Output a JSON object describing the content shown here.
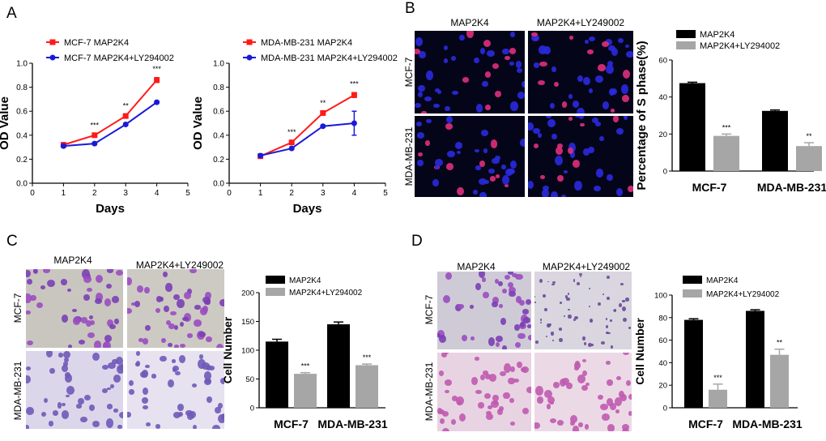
{
  "panels": {
    "a": "A",
    "b": "B",
    "c": "C",
    "d": "D"
  },
  "colors": {
    "red": "#ff1a1a",
    "blue": "#1a1ad6",
    "black": "#000000",
    "gray": "#a6a6a6"
  },
  "images": {
    "b": {
      "cols": [
        "MAP2K4",
        "MAP2K4+LY249002"
      ],
      "rows": [
        "MCF-7",
        "MDA-MB-231"
      ]
    },
    "c": {
      "cols": [
        "MAP2K4",
        "MAP2K4+LY249002"
      ],
      "rows": [
        "MCF-7",
        "MDA-MB-231"
      ]
    },
    "d": {
      "cols": [
        "MAP2K4",
        "MAP2K4+LY249002"
      ],
      "rows": [
        "MCF-7",
        "MDA-MB-231"
      ]
    }
  },
  "chart_data": [
    {
      "id": "a1",
      "type": "line",
      "title": "",
      "xlabel": "Days",
      "ylabel": "OD Value",
      "xlim": [
        0,
        5
      ],
      "ylim": [
        0,
        1.0
      ],
      "xticks": [
        "0",
        "1",
        "2",
        "3",
        "4",
        "5"
      ],
      "yticks": [
        "0.0",
        "0.2",
        "0.4",
        "0.6",
        "0.8",
        "1.0"
      ],
      "x": [
        1,
        2,
        3,
        4
      ],
      "series": [
        {
          "name": "MCF-7 MAP2K4",
          "marker": "square",
          "values": [
            0.32,
            0.4,
            0.56,
            0.86
          ],
          "errors": [
            0.01,
            0.01,
            0.01,
            0.02
          ]
        },
        {
          "name": "MCF-7 MAP2K4+LY294002",
          "marker": "circle",
          "values": [
            0.31,
            0.33,
            0.49,
            0.675
          ],
          "errors": [
            0.01,
            0.01,
            0.01,
            0.01
          ]
        }
      ],
      "significance": [
        "",
        "***",
        "**",
        "***"
      ],
      "legend": "top-left"
    },
    {
      "id": "a2",
      "type": "line",
      "title": "",
      "xlabel": "Days",
      "ylabel": "OD Value",
      "xlim": [
        0,
        5
      ],
      "ylim": [
        0,
        1.0
      ],
      "xticks": [
        "0",
        "1",
        "2",
        "3",
        "4",
        "5"
      ],
      "yticks": [
        "0.0",
        "0.2",
        "0.4",
        "0.6",
        "0.8",
        "1.0"
      ],
      "x": [
        1,
        2,
        3,
        4
      ],
      "series": [
        {
          "name": "MDA-MB-231  MAP2K4",
          "marker": "square",
          "values": [
            0.225,
            0.34,
            0.585,
            0.735
          ],
          "errors": [
            0.01,
            0.01,
            0.01,
            0.02
          ]
        },
        {
          "name": "MDA-MB-231  MAP2K4+LY294002",
          "marker": "circle",
          "values": [
            0.23,
            0.29,
            0.475,
            0.5
          ],
          "errors": [
            0.01,
            0.01,
            0.01,
            0.1
          ]
        }
      ],
      "significance": [
        "",
        "***",
        "**",
        "***"
      ],
      "legend": "top-left"
    },
    {
      "id": "b",
      "type": "bar",
      "ylabel": "Percentage of S phase(%)",
      "ylim": [
        0,
        60
      ],
      "yticks": [
        "0",
        "20",
        "40",
        "60"
      ],
      "categories": [
        "MCF-7",
        "MDA-MB-231"
      ],
      "series": [
        {
          "name": "MAP2K4",
          "values": [
            47.5,
            32.5
          ],
          "errors": [
            0.5,
            0.5
          ]
        },
        {
          "name": "MAP2K4+LY294002",
          "values": [
            19,
            13.5
          ],
          "errors": [
            1,
            1.8
          ]
        }
      ],
      "significance": [
        "***",
        "**"
      ],
      "legend": "top-left"
    },
    {
      "id": "c",
      "type": "bar",
      "ylabel": "Cell Number",
      "ylim": [
        0,
        200
      ],
      "yticks": [
        "0",
        "50",
        "100",
        "150",
        "200"
      ],
      "categories": [
        "MCF-7",
        "MDA-MB-231"
      ],
      "series": [
        {
          "name": "MAP2K4",
          "values": [
            115,
            145
          ],
          "errors": [
            4,
            4
          ]
        },
        {
          "name": "MAP2K4+LY294002",
          "values": [
            59,
            74
          ],
          "errors": [
            2,
            2
          ]
        }
      ],
      "significance": [
        "***",
        "***"
      ],
      "legend": "top-left"
    },
    {
      "id": "d",
      "type": "bar",
      "ylabel": "Cell Number",
      "ylim": [
        0,
        100
      ],
      "yticks": [
        "0",
        "20",
        "40",
        "60",
        "80",
        "100"
      ],
      "categories": [
        "MCF-7",
        "MDA-MB-231"
      ],
      "series": [
        {
          "name": "MAP2K4",
          "values": [
            78,
            86
          ],
          "errors": [
            1,
            1
          ]
        },
        {
          "name": "MAP2K4+LY294002",
          "values": [
            16,
            47
          ],
          "errors": [
            5,
            5
          ]
        }
      ],
      "significance": [
        "***",
        "**"
      ],
      "legend": "top-left"
    }
  ]
}
